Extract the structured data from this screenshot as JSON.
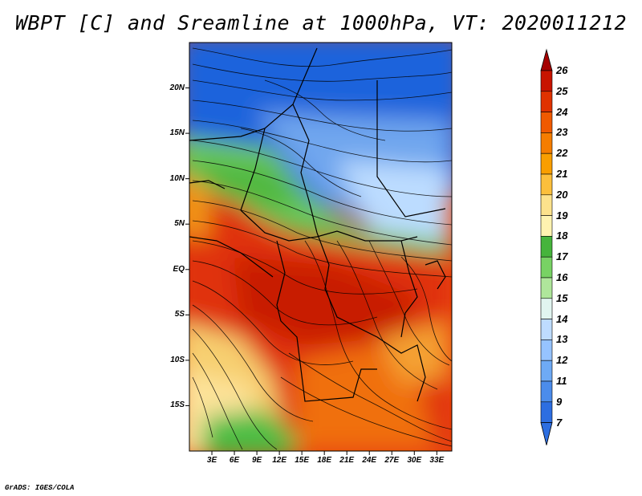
{
  "title": "WBPT [C] and Sreamline at 1000hPa, VT: 2020011212",
  "footer": "GrADS: IGES/COLA",
  "map": {
    "lat_range": [
      -20,
      25
    ],
    "lon_range": [
      0,
      35
    ],
    "y_ticks": [
      {
        "value": 20,
        "label": "20N"
      },
      {
        "value": 15,
        "label": "15N"
      },
      {
        "value": 10,
        "label": "10N"
      },
      {
        "value": 5,
        "label": "5N"
      },
      {
        "value": 0,
        "label": "EQ"
      },
      {
        "value": -5,
        "label": "5S"
      },
      {
        "value": -10,
        "label": "10S"
      },
      {
        "value": -15,
        "label": "15S"
      }
    ],
    "x_ticks": [
      {
        "value": 3,
        "label": "3E"
      },
      {
        "value": 6,
        "label": "6E"
      },
      {
        "value": 9,
        "label": "9E"
      },
      {
        "value": 12,
        "label": "12E"
      },
      {
        "value": 15,
        "label": "15E"
      },
      {
        "value": 18,
        "label": "18E"
      },
      {
        "value": 21,
        "label": "21E"
      },
      {
        "value": 24,
        "label": "24E"
      },
      {
        "value": 27,
        "label": "27E"
      },
      {
        "value": 30,
        "label": "30E"
      },
      {
        "value": 33,
        "label": "33E"
      }
    ]
  },
  "colorbar": {
    "labels": [
      "26",
      "25",
      "24",
      "23",
      "22",
      "21",
      "20",
      "19",
      "18",
      "17",
      "16",
      "15",
      "14",
      "13",
      "12",
      "11",
      "9",
      "7"
    ],
    "colors": [
      "#a50000",
      "#c81400",
      "#e03200",
      "#f05a00",
      "#f57d00",
      "#f99e00",
      "#fcbf3c",
      "#fde28c",
      "#fff3b0",
      "#46b43c",
      "#78d264",
      "#afe69b",
      "#e1f5f0",
      "#bedcff",
      "#96c3ff",
      "#6eaaf5",
      "#4b8ceb",
      "#2d6ee1"
    ],
    "top_color": "#a50000",
    "bottom_color": "#2d6ee1"
  }
}
